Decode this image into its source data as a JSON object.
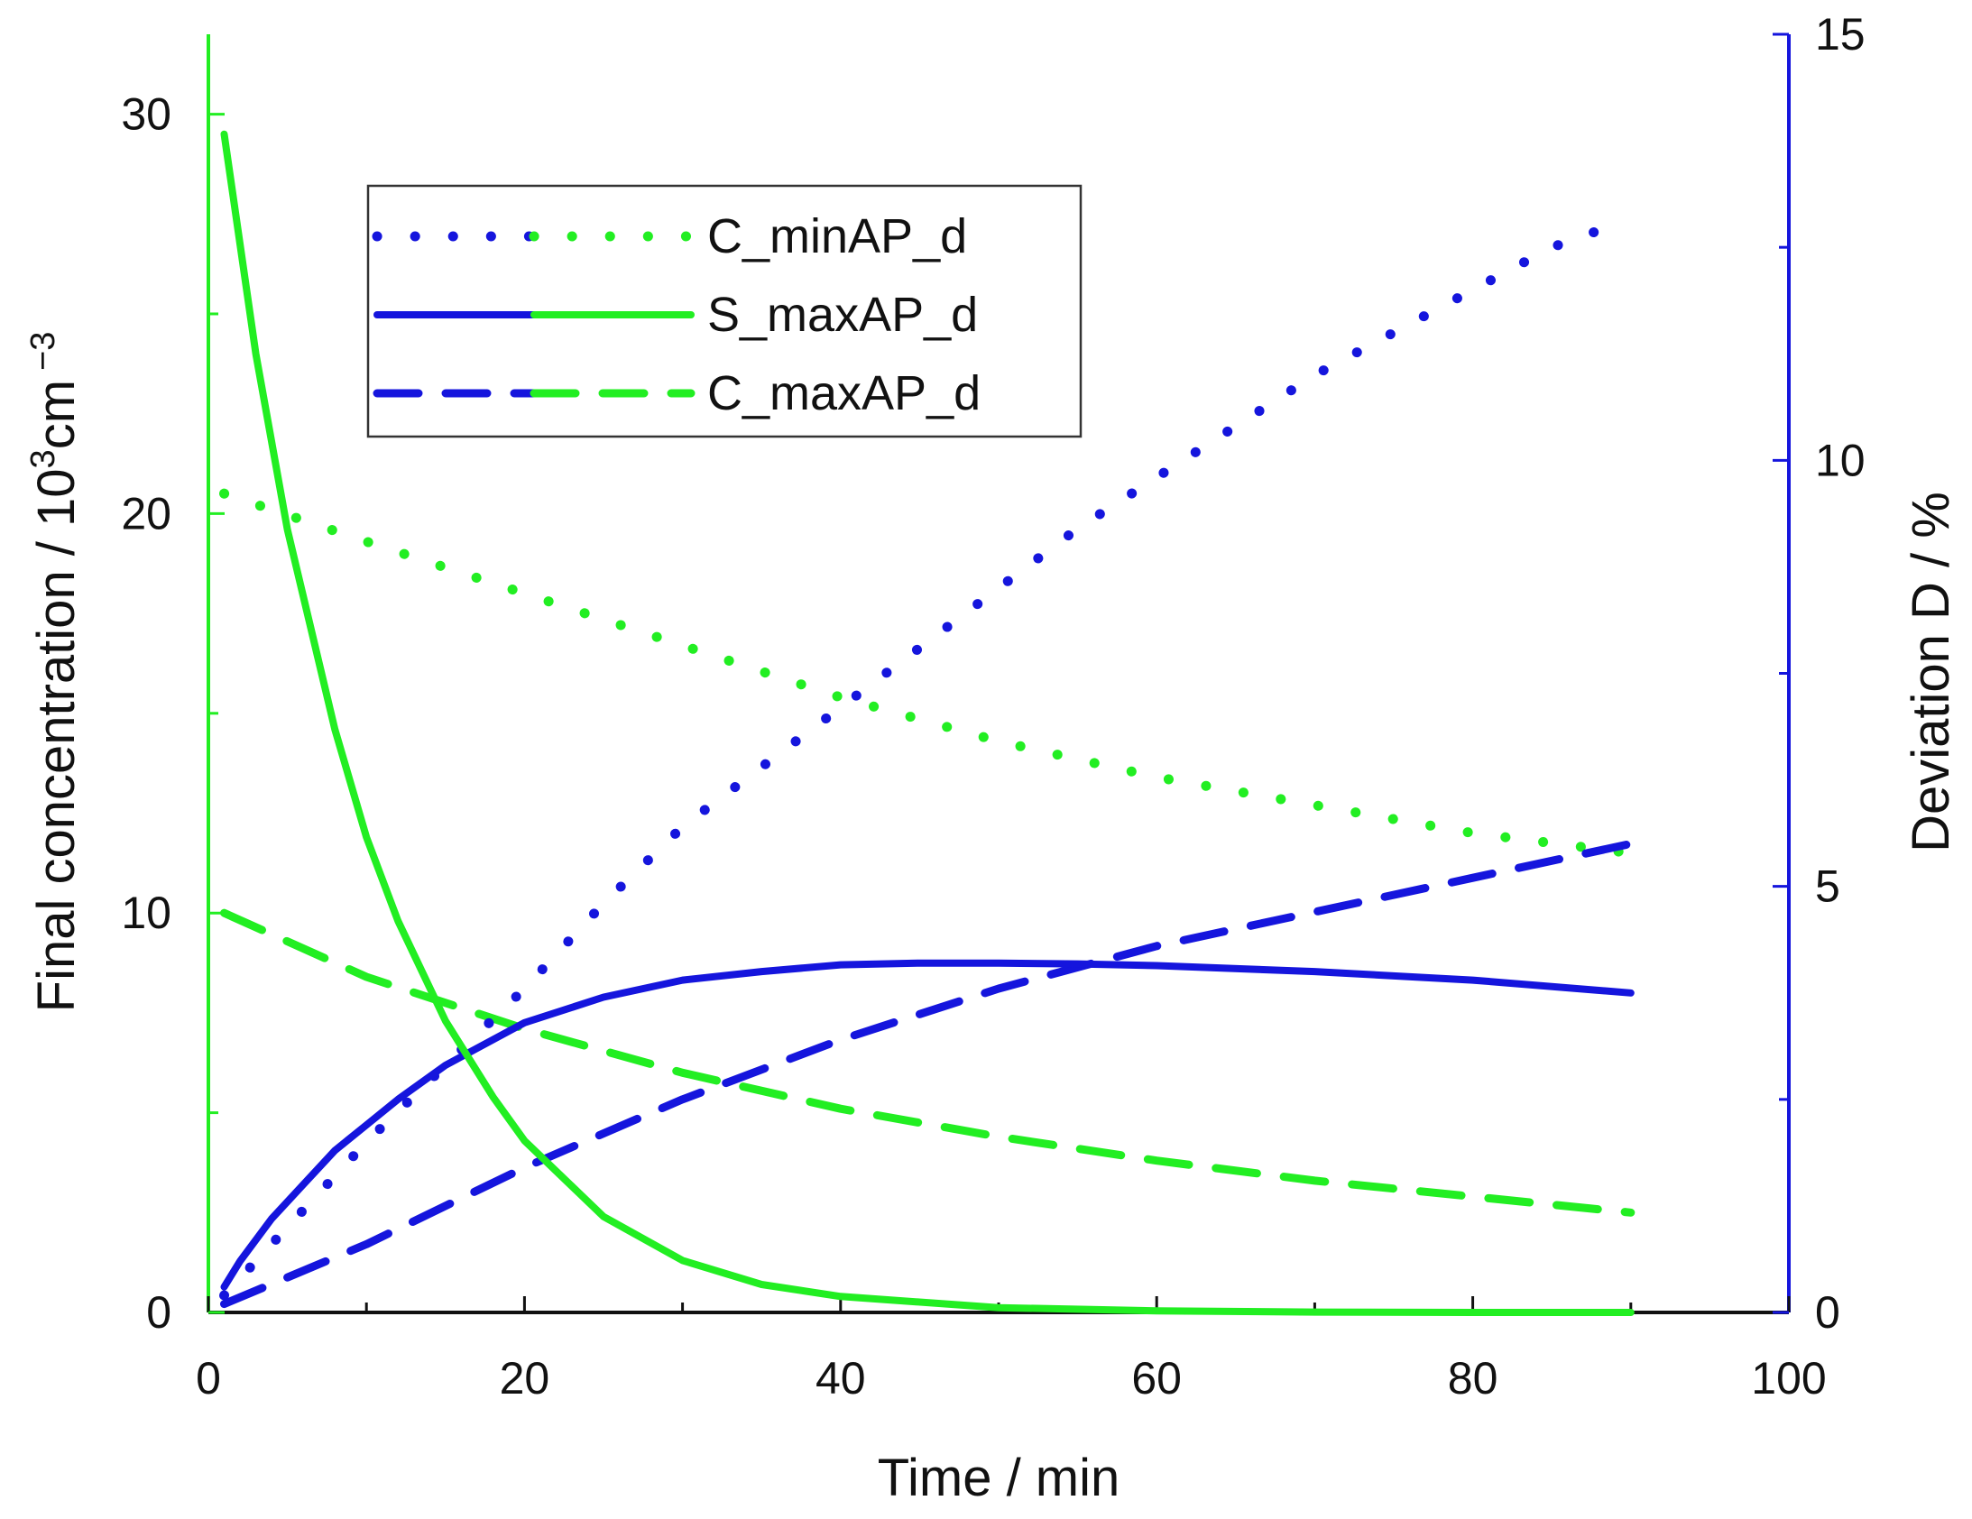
{
  "chart_data": {
    "type": "line",
    "xlabel": "Time / min",
    "ylabel_left_main": "Final concentration / 10",
    "ylabel_left_sup": "3",
    "ylabel_left_tail": "cm",
    "ylabel_left_tail_sup": "−3",
    "ylabel_right": "Deviation D / %",
    "x_ticks": [
      "0",
      "20",
      "40",
      "60",
      "80",
      "100"
    ],
    "y_left_ticks": [
      "0",
      "10",
      "20",
      "30"
    ],
    "y_right_ticks": [
      "0",
      "5",
      "10",
      "15"
    ],
    "xlim": [
      0,
      100
    ],
    "ylim_left": [
      0,
      32
    ],
    "ylim_right": [
      0,
      15
    ],
    "colors": {
      "concentration": "#22ee22",
      "deviation": "#1515dd",
      "axis": "#111111"
    },
    "legend": [
      {
        "label": "C_minAP_d",
        "style": "dotted"
      },
      {
        "label": "S_maxAP_d",
        "style": "solid"
      },
      {
        "label": "C_maxAP_d",
        "style": "dashed"
      }
    ],
    "series": [
      {
        "name": "C_minAP_d concentration",
        "axis": "left",
        "color": "#22ee22",
        "style": "dotted",
        "x": [
          1,
          10,
          20,
          30,
          40,
          50,
          60,
          70,
          80,
          90
        ],
        "y": [
          20.5,
          19.3,
          18.0,
          16.7,
          15.4,
          14.3,
          13.4,
          12.7,
          12.0,
          11.5
        ]
      },
      {
        "name": "S_maxAP_d concentration",
        "axis": "left",
        "color": "#22ee22",
        "style": "solid",
        "x": [
          1,
          3,
          5,
          8,
          10,
          12,
          15,
          18,
          20,
          25,
          30,
          35,
          40,
          50,
          60,
          70,
          80,
          90
        ],
        "y": [
          29.5,
          24.0,
          19.6,
          14.6,
          11.9,
          9.8,
          7.3,
          5.4,
          4.3,
          2.4,
          1.3,
          0.7,
          0.4,
          0.12,
          0.04,
          0.01,
          0.0,
          0.0
        ]
      },
      {
        "name": "C_maxAP_d concentration",
        "axis": "left",
        "color": "#22ee22",
        "style": "dashed",
        "x": [
          1,
          10,
          20,
          30,
          40,
          50,
          60,
          70,
          80,
          90
        ],
        "y": [
          10.0,
          8.4,
          7.1,
          6.0,
          5.1,
          4.4,
          3.8,
          3.3,
          2.9,
          2.5
        ]
      },
      {
        "name": "C_minAP_d deviation",
        "axis": "right",
        "color": "#1515dd",
        "style": "dotted",
        "x": [
          1,
          5,
          10,
          15,
          20,
          25,
          30,
          35,
          40,
          45,
          50,
          55,
          60,
          65,
          70,
          75,
          80,
          85,
          88
        ],
        "y": [
          0.2,
          1.0,
          2.0,
          2.9,
          3.8,
          4.8,
          5.7,
          6.4,
          7.1,
          7.8,
          8.5,
          9.2,
          9.8,
          10.4,
          11.0,
          11.5,
          12.0,
          12.5,
          12.7
        ]
      },
      {
        "name": "S_maxAP_d deviation",
        "axis": "right",
        "color": "#1515dd",
        "style": "solid",
        "x": [
          1,
          2,
          4,
          6,
          8,
          10,
          12,
          15,
          20,
          25,
          30,
          35,
          40,
          45,
          50,
          55,
          60,
          70,
          80,
          90
        ],
        "y": [
          0.3,
          0.6,
          1.1,
          1.5,
          1.9,
          2.2,
          2.5,
          2.9,
          3.4,
          3.7,
          3.9,
          4.0,
          4.08,
          4.1,
          4.1,
          4.09,
          4.07,
          4.0,
          3.9,
          3.75
        ]
      },
      {
        "name": "C_maxAP_d deviation",
        "axis": "right",
        "color": "#1515dd",
        "style": "dashed",
        "x": [
          1,
          10,
          20,
          30,
          40,
          50,
          60,
          70,
          80,
          90
        ],
        "y": [
          0.1,
          0.8,
          1.7,
          2.5,
          3.2,
          3.8,
          4.3,
          4.7,
          5.1,
          5.5
        ]
      }
    ]
  }
}
